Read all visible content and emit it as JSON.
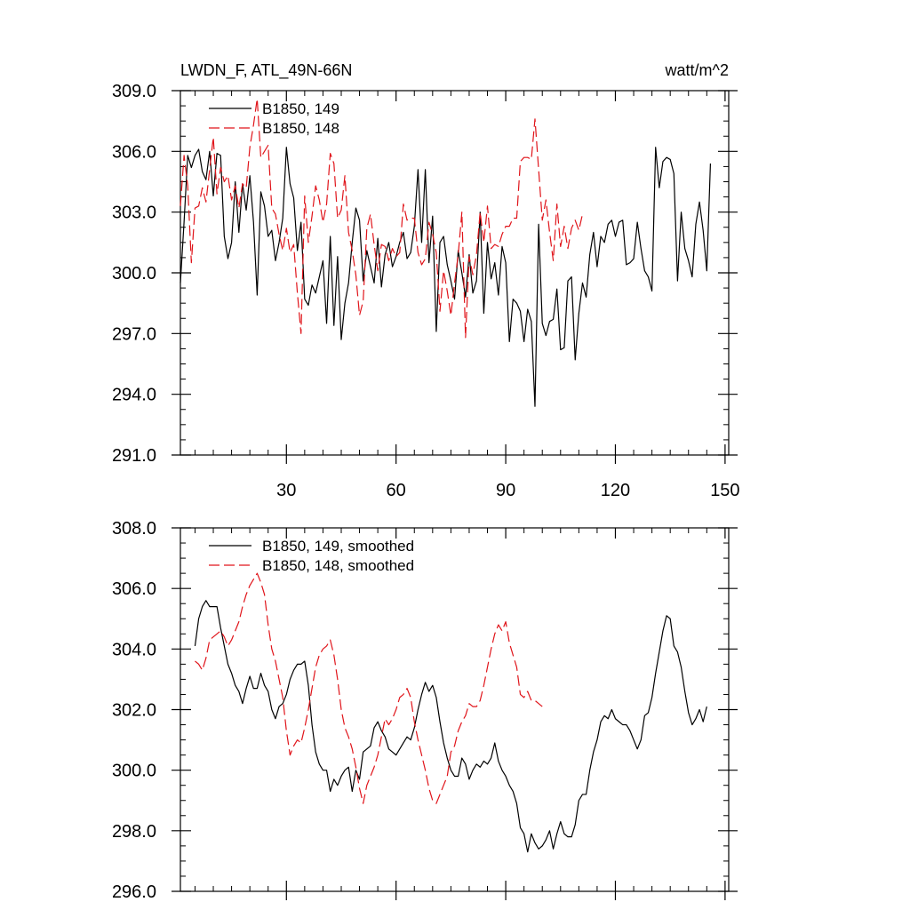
{
  "header": {
    "title": "LWDN_F, ATL_49N-66N",
    "units": "watt/m^2"
  },
  "chart_data": [
    {
      "type": "line",
      "panel": "top",
      "title": "LWDN_F, ATL_49N-66N",
      "units": "watt/m^2",
      "xlim": [
        1,
        151
      ],
      "ylim": [
        291,
        309
      ],
      "xticks": [
        30,
        60,
        90,
        120,
        150
      ],
      "xtick_labels": [
        "30",
        "60",
        "90",
        "120",
        "150"
      ],
      "yticks": [
        291,
        294,
        297,
        300,
        303,
        306,
        309
      ],
      "ytick_labels": [
        "291.0",
        "294.0",
        "297.0",
        "300.0",
        "303.0",
        "306.0",
        "309.0"
      ],
      "x_minor_step": 5,
      "y_minor_step": 0.75,
      "legend_position": "top-left",
      "series": [
        {
          "name": "B1850, 149",
          "color": "#000000",
          "dash": "solid",
          "x_start": 1,
          "values": [
            299.5,
            302.5,
            305.8,
            305.2,
            305.8,
            306.1,
            305.0,
            304.6,
            306.0,
            303.8,
            305.9,
            305.8,
            301.8,
            300.7,
            301.5,
            304.5,
            302.0,
            304.4,
            303.1,
            304.8,
            302.5,
            298.9,
            304.0,
            303.3,
            301.8,
            302.1,
            300.6,
            301.5,
            302.7,
            306.2,
            304.4,
            303.7,
            301.1,
            302.5,
            298.7,
            298.4,
            299.4,
            299.0,
            299.8,
            300.6,
            297.5,
            301.8,
            297.4,
            300.8,
            296.7,
            298.5,
            299.5,
            301.5,
            303.2,
            302.6,
            299.6,
            301.1,
            300.3,
            299.5,
            301.7,
            299.3,
            300.9,
            301.5,
            300.3,
            300.8,
            301.5,
            302.0,
            300.7,
            301.0,
            302.3,
            305.1,
            301.5,
            305.1,
            300.5,
            302.8,
            297.1,
            301.5,
            301.8,
            300.4,
            299.6,
            298.7,
            301.1,
            300.0,
            298.8,
            300.9,
            299.0,
            299.6,
            303.0,
            298.0,
            301.5,
            299.7,
            300.5,
            298.9,
            301.3,
            300.5,
            296.6,
            298.7,
            298.5,
            298.1,
            296.6,
            298.2,
            297.6,
            293.4,
            302.4,
            297.5,
            296.9,
            297.6,
            297.7,
            299.2,
            296.2,
            296.3,
            299.6,
            299.8,
            295.7,
            298.0,
            299.5,
            298.8,
            300.9,
            302.0,
            300.3,
            301.8,
            301.5,
            302.4,
            302.6,
            301.8,
            302.5,
            302.6,
            300.4,
            300.5,
            300.7,
            302.5,
            301.2,
            300.1,
            299.8,
            299.1,
            306.2,
            304.2,
            305.5,
            305.7,
            305.6,
            304.9,
            299.6,
            303.0,
            301.2,
            300.6,
            299.8,
            302.4,
            303.5,
            302.1,
            300.1,
            305.4
          ]
        },
        {
          "name": "B1850, 148",
          "color": "#e0141a",
          "dash": "dashed",
          "x_start": 1,
          "values": [
            303.3,
            305.8,
            304.3,
            300.5,
            303.2,
            303.3,
            304.2,
            303.5,
            305.1,
            306.7,
            303.9,
            305.2,
            304.5,
            304.8,
            303.6,
            304.3,
            303.2,
            304.4,
            304.2,
            306.2,
            307.3,
            308.6,
            305.7,
            306.0,
            306.3,
            303.2,
            302.9,
            301.9,
            301.1,
            302.2,
            301.0,
            301.4,
            299.0,
            297.0,
            303.8,
            301.5,
            302.8,
            304.3,
            303.6,
            302.5,
            303.4,
            305.9,
            305.4,
            302.7,
            303.1,
            304.8,
            302.0,
            301.1,
            299.9,
            297.9,
            298.6,
            302.2,
            302.9,
            301.4,
            300.1,
            301.4,
            301.3,
            300.6,
            301.2,
            300.8,
            301.0,
            303.4,
            302.6,
            302.7,
            302.7,
            301.0,
            300.4,
            300.7,
            302.5,
            301.9,
            301.0,
            298.1,
            300.1,
            299.1,
            297.9,
            299.5,
            300.9,
            303.0,
            296.8,
            300.8,
            299.9,
            300.9,
            303.0,
            301.5,
            303.3,
            301.2,
            301.4,
            301.3,
            301.9,
            302.3,
            302.3,
            302.7,
            302.7,
            305.5,
            305.7,
            305.7,
            305.6,
            307.6,
            305.1,
            302.6,
            303.6,
            302.0,
            300.6,
            303.4,
            301.3,
            302.3,
            301.2,
            302.2,
            302.6,
            302.1,
            302.9
          ]
        }
      ]
    },
    {
      "type": "line",
      "panel": "bottom",
      "xlim": [
        1,
        151
      ],
      "ylim": [
        296,
        308
      ],
      "xticks": [
        30,
        60,
        90,
        120,
        150
      ],
      "yticks": [
        296,
        298,
        300,
        302,
        304,
        306,
        308
      ],
      "ytick_labels": [
        "296.0",
        "298.0",
        "300.0",
        "302.0",
        "304.0",
        "306.0",
        "308.0"
      ],
      "x_minor_step": 5,
      "y_minor_step": 0.5,
      "legend_position": "top-left",
      "series": [
        {
          "name": "B1850, 149, smoothed",
          "color": "#000000",
          "dash": "solid",
          "x_start": 5,
          "values": [
            304.1,
            305.0,
            305.4,
            305.6,
            305.4,
            305.4,
            305.4,
            304.7,
            304.1,
            303.5,
            303.2,
            302.8,
            302.6,
            302.2,
            302.7,
            303.1,
            302.7,
            302.7,
            303.2,
            302.8,
            302.6,
            302.0,
            301.7,
            302.1,
            302.2,
            302.5,
            303.0,
            303.3,
            303.5,
            303.5,
            303.6,
            302.8,
            301.5,
            300.6,
            300.2,
            300.0,
            300.0,
            299.3,
            299.7,
            299.5,
            299.8,
            300.0,
            300.1,
            299.3,
            300.0,
            299.7,
            300.6,
            300.7,
            300.8,
            301.4,
            301.6,
            301.3,
            301.1,
            300.7,
            300.6,
            300.5,
            300.7,
            300.9,
            301.1,
            301.0,
            301.4,
            302.0,
            302.5,
            302.9,
            302.6,
            302.8,
            302.4,
            301.6,
            300.9,
            300.4,
            300.0,
            299.8,
            299.8,
            300.4,
            300.2,
            299.7,
            300.0,
            300.2,
            300.1,
            300.3,
            300.2,
            300.4,
            300.9,
            300.3,
            300.0,
            299.8,
            299.5,
            299.3,
            298.9,
            298.1,
            297.9,
            297.3,
            297.9,
            297.6,
            297.4,
            297.5,
            297.7,
            298.0,
            297.4,
            297.9,
            298.3,
            297.9,
            297.8,
            297.8,
            298.2,
            299.0,
            299.2,
            299.2,
            300.0,
            300.6,
            301.0,
            301.6,
            301.8,
            301.7,
            302.0,
            301.7,
            301.6,
            301.5,
            301.5,
            301.3,
            301.0,
            300.7,
            301.0,
            301.8,
            301.9,
            302.4,
            303.2,
            303.9,
            304.6,
            305.1,
            305.0,
            304.1,
            303.9,
            303.4,
            302.6,
            301.9,
            301.5,
            301.7,
            302.0,
            301.6,
            302.1
          ]
        },
        {
          "name": "B1850, 148, smoothed",
          "color": "#e0141a",
          "dash": "dashed",
          "x_start": 5,
          "values": [
            303.6,
            303.5,
            303.3,
            303.7,
            304.3,
            304.4,
            304.5,
            304.6,
            304.4,
            304.1,
            304.3,
            304.6,
            304.9,
            305.4,
            305.8,
            306.1,
            306.3,
            306.5,
            306.2,
            305.8,
            304.8,
            304.0,
            303.6,
            303.0,
            302.4,
            301.3,
            300.5,
            300.8,
            301.0,
            300.9,
            301.4,
            302.0,
            302.7,
            303.4,
            303.8,
            304.0,
            304.1,
            304.3,
            303.8,
            303.0,
            302.0,
            301.4,
            301.1,
            300.7,
            300.1,
            299.4,
            298.9,
            299.5,
            299.8,
            300.1,
            300.5,
            301.1,
            301.7,
            301.5,
            301.7,
            302.0,
            302.4,
            302.5,
            302.7,
            302.4,
            301.6,
            301.0,
            300.5,
            300.0,
            299.4,
            299.0,
            298.9,
            299.2,
            299.5,
            299.8,
            300.6,
            300.8,
            301.3,
            301.6,
            301.8,
            302.2,
            302.1,
            302.1,
            302.3,
            302.8,
            303.4,
            304.0,
            304.5,
            304.8,
            304.6,
            304.9,
            304.2,
            303.8,
            303.4,
            302.5,
            302.4,
            302.6,
            302.3,
            302.3,
            302.2,
            302.1
          ]
        }
      ]
    }
  ]
}
